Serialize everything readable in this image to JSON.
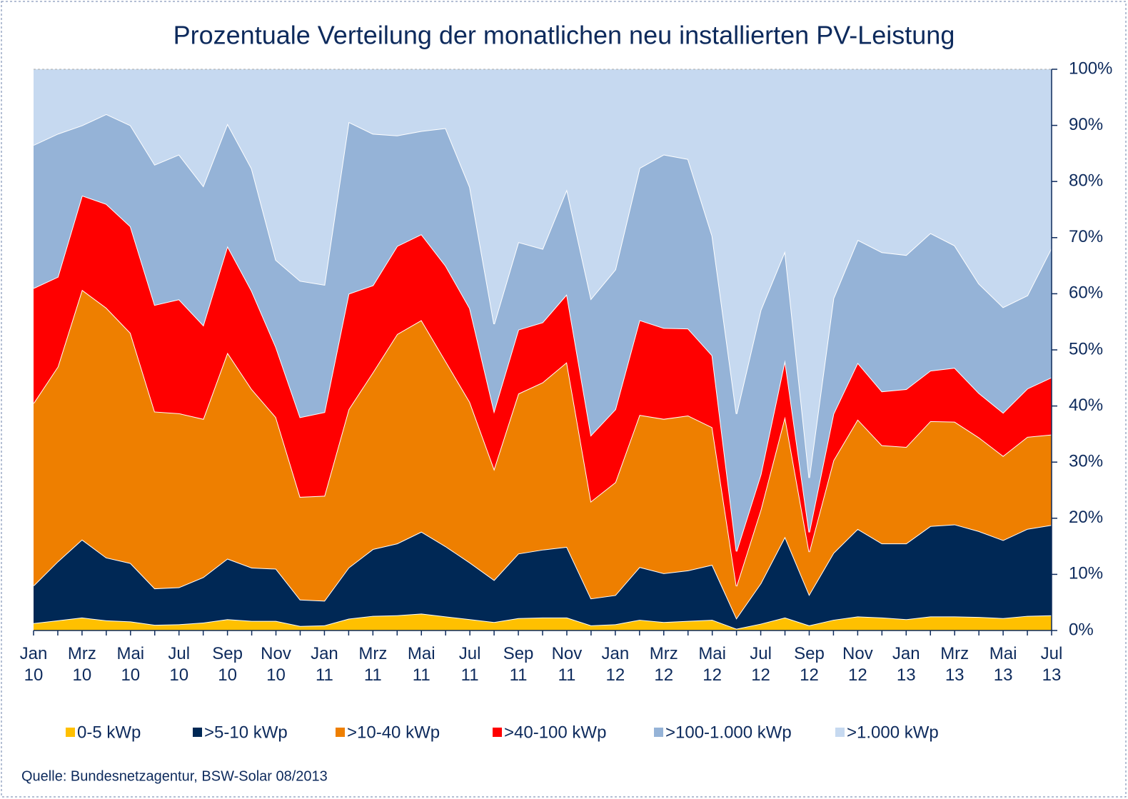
{
  "chart_data": {
    "type": "stacked-area",
    "title": "Prozentuale Verteilung der monatlichen neu installierten PV-Leistung",
    "source": "Quelle: Bundesnetzagentur, BSW-Solar 08/2013",
    "categories": [
      "Jan\n10",
      null,
      "Mrz\n10",
      null,
      "Mai\n10",
      null,
      "Jul\n10",
      null,
      "Sep\n10",
      null,
      "Nov\n10",
      null,
      "Jan\n11",
      null,
      "Mrz\n11",
      null,
      "Mai\n11",
      null,
      "Jul\n11",
      null,
      "Sep\n11",
      null,
      "Nov\n11",
      null,
      "Jan\n12",
      null,
      "Mrz\n12",
      null,
      "Mai\n12",
      null,
      "Jul\n12",
      null,
      "Sep\n12",
      null,
      "Nov\n12",
      null,
      "Jan\n13",
      null,
      "Mrz\n13",
      null,
      "Mai\n13",
      null,
      "Jul\n13"
    ],
    "series": [
      {
        "name": "0-5 kWp",
        "color": "#ffc000",
        "values": [
          1.3,
          1.8,
          2.3,
          1.8,
          1.6,
          1.0,
          1.1,
          1.4,
          2.0,
          1.7,
          1.7,
          0.8,
          0.9,
          2.1,
          2.6,
          2.7,
          3.0,
          2.5,
          2.0,
          1.5,
          2.2,
          2.3,
          2.3,
          0.9,
          1.1,
          1.9,
          1.5,
          1.7,
          1.9,
          0.3,
          1.2,
          2.3,
          0.9,
          1.9,
          2.5,
          2.3,
          2.0,
          2.5,
          2.5,
          2.4,
          2.2,
          2.6,
          2.7
        ]
      },
      {
        "name": ">5-10 kWp",
        "color": "#002855",
        "values": [
          6.7,
          10.5,
          13.9,
          11.2,
          10.4,
          6.5,
          6.6,
          8.1,
          10.8,
          9.5,
          9.3,
          4.7,
          4.4,
          9.1,
          11.9,
          12.8,
          14.6,
          12.5,
          10.1,
          7.5,
          11.5,
          12.1,
          12.6,
          4.8,
          5.2,
          9.4,
          8.7,
          9.0,
          9.8,
          1.9,
          7.2,
          14.4,
          5.5,
          11.9,
          15.6,
          13.2,
          13.5,
          16.1,
          16.4,
          15.3,
          13.9,
          15.5,
          16.1
        ]
      },
      {
        "name": ">10-40 kWp",
        "color": "#ee7f00",
        "values": [
          32.5,
          34.7,
          44.5,
          44.5,
          41,
          31.5,
          31,
          28.2,
          36.7,
          31.8,
          27,
          18.3,
          18.7,
          28.2,
          31.5,
          37.3,
          37.7,
          33,
          28.6,
          19.8,
          28.5,
          29.8,
          32.9,
          17.3,
          20.1,
          27.1,
          27.5,
          27.6,
          24.5,
          5.7,
          13.1,
          21.4,
          7.6,
          16.5,
          19.5,
          17.5,
          17.2,
          18.7,
          18.3,
          16.7,
          15,
          16.4,
          16.1
        ]
      },
      {
        "name": ">40-100 kWp",
        "color": "#ff0000",
        "values": [
          20.5,
          16,
          16.8,
          18.5,
          19,
          19,
          20.3,
          16.7,
          19,
          17.5,
          12.5,
          14.2,
          14.9,
          20.6,
          15.5,
          15.7,
          15.3,
          17,
          16.7,
          10.3,
          11.4,
          10.7,
          12.1,
          11.8,
          13,
          16.9,
          16.2,
          15.5,
          12.8,
          6.2,
          6.3,
          10.1,
          3.5,
          8.3,
          10.1,
          9.6,
          10.3,
          9,
          9.6,
          7.9,
          7.7,
          8.6,
          10.2
        ]
      },
      {
        "name": ">100-1.000 kWp",
        "color": "#95b3d7",
        "values": [
          25.5,
          25.5,
          12.5,
          16,
          18,
          25,
          25.8,
          24.8,
          21.8,
          21.8,
          15.5,
          24.3,
          22.7,
          30.6,
          27,
          19.7,
          18.4,
          24.5,
          21.6,
          15.5,
          15.6,
          13.1,
          18.7,
          24.3,
          24.9,
          27.1,
          30.9,
          30.2,
          21.3,
          24.5,
          29.3,
          19.4,
          9.7,
          20.6,
          21.9,
          24.8,
          23.9,
          24.5,
          21.8,
          19.5,
          18.8,
          16.6,
          23.1
        ]
      },
      {
        "name": ">1.000 kWp",
        "color": "#c6d9f0",
        "values": [
          13.5,
          11.5,
          10,
          8,
          10,
          17,
          15.2,
          20.8,
          9.7,
          17.7,
          34,
          37.7,
          38.4,
          9.4,
          11.5,
          11.8,
          11.0,
          10.5,
          21,
          45.4,
          30.8,
          32,
          21.4,
          40.9,
          35.7,
          17.6,
          15.2,
          16,
          29.7,
          61.4,
          42.9,
          32.4,
          72.8,
          40.8,
          30.4,
          32.6,
          33.1,
          29.2,
          31.4,
          38.2,
          42.4,
          40.3,
          31.8
        ]
      }
    ],
    "ylim": [
      0,
      100
    ],
    "yticks": [
      {
        "value": 0,
        "label": "0%"
      },
      {
        "value": 10,
        "label": "10%"
      },
      {
        "value": 20,
        "label": "20%"
      },
      {
        "value": 30,
        "label": "30%"
      },
      {
        "value": 40,
        "label": "40%"
      },
      {
        "value": 50,
        "label": "50%"
      },
      {
        "value": 60,
        "label": "60%"
      },
      {
        "value": 70,
        "label": "70%"
      },
      {
        "value": 80,
        "label": "80%"
      },
      {
        "value": 90,
        "label": "90%"
      },
      {
        "value": 100,
        "label": "100%"
      }
    ],
    "legend": "bottom"
  }
}
